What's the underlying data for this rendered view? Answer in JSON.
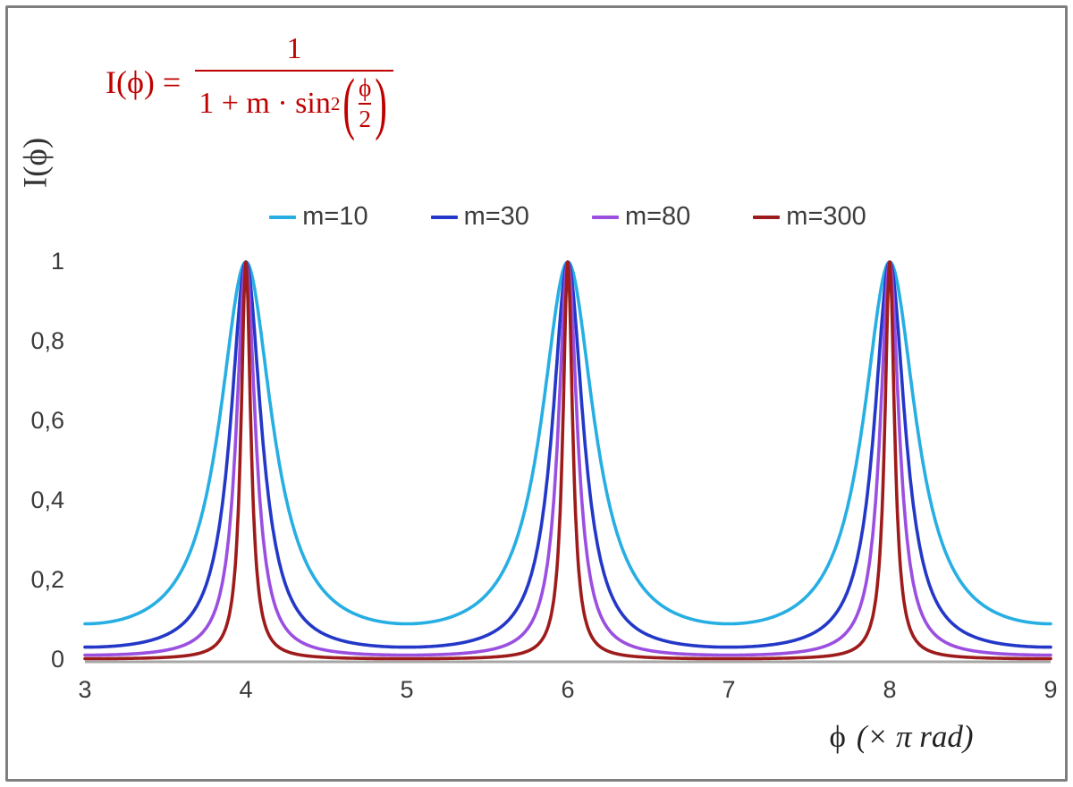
{
  "frame": {
    "border_color": "#7f7f7f",
    "background": "#ffffff"
  },
  "formula": {
    "color": "#bf0000",
    "lhs": "I(ϕ) =",
    "numerator": "1",
    "den_text": "1 + m · sin",
    "den_sup": "2",
    "paren_open": "(",
    "paren_close": ")",
    "inner_numerator": "ϕ",
    "inner_denominator": "2",
    "as_plain_text": "I(ϕ) = 1 / (1 + m·sin²(ϕ/2))"
  },
  "chart_data": {
    "type": "line",
    "title": "",
    "function": "I(phi) = 1 / (1 + m * sin^2(phi/2)) with x axis in units of pi rad (phi = x*pi)",
    "xlabel": "ϕ (× π rad)",
    "xlabel_parts": {
      "symbol": "ϕ",
      "units": "(× π rad)"
    },
    "ylabel": "I(ϕ)",
    "xlim": [
      3,
      9
    ],
    "ylim": [
      0,
      1
    ],
    "grid": false,
    "legend_position": "top",
    "axis_color": "#a6a6a6",
    "peaks_at_x": [
      4,
      6,
      8
    ],
    "peak_value": 1,
    "minima": [
      {
        "name": "m=10",
        "min_value": 0.0909
      },
      {
        "name": "m=30",
        "min_value": 0.0323
      },
      {
        "name": "m=80",
        "min_value": 0.0123
      },
      {
        "name": "m=300",
        "min_value": 0.0033
      }
    ],
    "x_ticks": [
      {
        "label": "3",
        "value": 3
      },
      {
        "label": "4",
        "value": 4
      },
      {
        "label": "5",
        "value": 5
      },
      {
        "label": "6",
        "value": 6
      },
      {
        "label": "7",
        "value": 7
      },
      {
        "label": "8",
        "value": 8
      },
      {
        "label": "9",
        "value": 9
      }
    ],
    "y_ticks": [
      {
        "label": "0",
        "value": 0
      },
      {
        "label": "0,2",
        "value": 0.2
      },
      {
        "label": "0,4",
        "value": 0.4
      },
      {
        "label": "0,6",
        "value": 0.6
      },
      {
        "label": "0,8",
        "value": 0.8
      },
      {
        "label": "1",
        "value": 1
      }
    ],
    "series": [
      {
        "name": "m=10",
        "m": 10,
        "color": "#27aee3"
      },
      {
        "name": "m=30",
        "m": 30,
        "color": "#2438c8"
      },
      {
        "name": "m=80",
        "m": 80,
        "color": "#9b4fe0"
      },
      {
        "name": "m=300",
        "m": 300,
        "color": "#9e1b1b"
      }
    ]
  }
}
